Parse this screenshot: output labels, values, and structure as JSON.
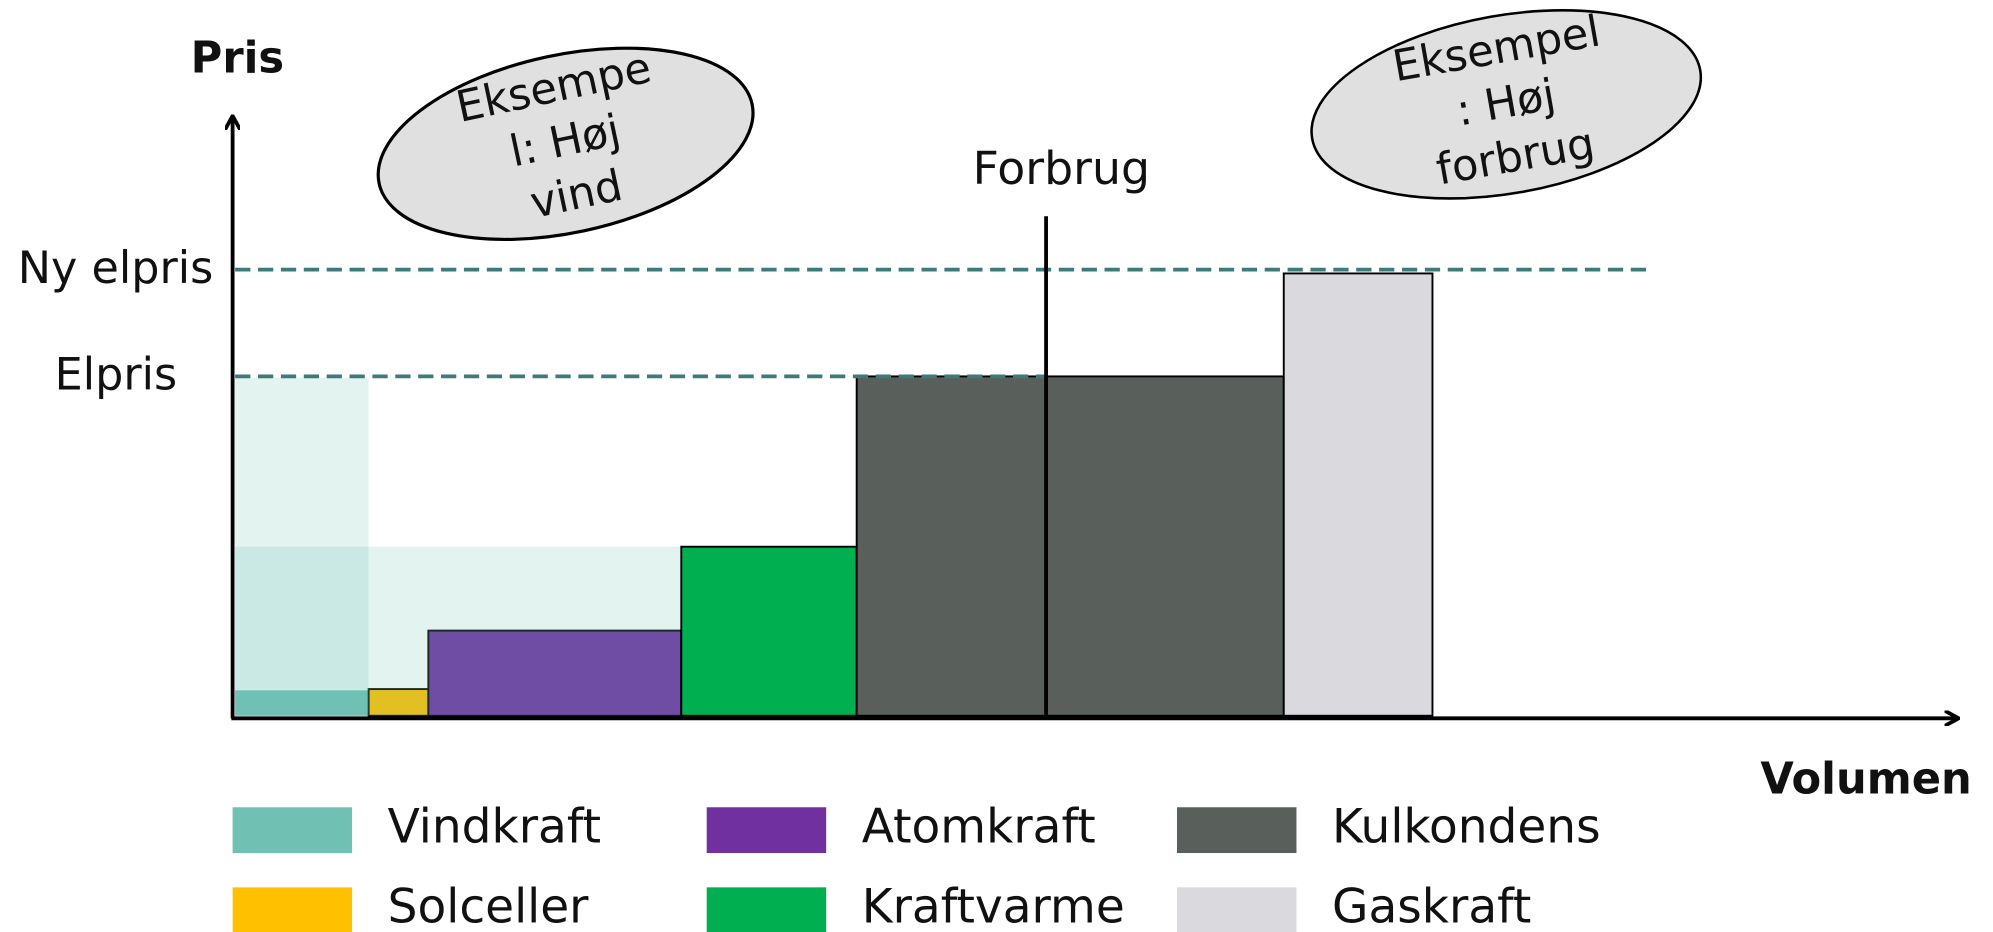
{
  "axes": {
    "y_label": "Pris",
    "x_label": "Volumen"
  },
  "price_lines": [
    "Ny elpris",
    "Elpris"
  ],
  "demand_label": "Forbrug",
  "callouts": [
    {
      "lines": [
        "Eksempe",
        "l: Høj",
        "vind"
      ]
    },
    {
      "lines": [
        "Eksempel",
        ": Høj",
        "forbrug"
      ]
    }
  ],
  "legend": [
    {
      "label": "Vindkraft",
      "color": "#70c1b3"
    },
    {
      "label": "Solceller",
      "color": "#ffc000"
    },
    {
      "label": "Atomkraft",
      "color": "#7030a0"
    },
    {
      "label": "Kraftvarme",
      "color": "#00b050"
    },
    {
      "label": "Kulkondens",
      "color": "#595f5a"
    },
    {
      "label": "Gaskraft",
      "color": "#d9d9de"
    }
  ]
}
